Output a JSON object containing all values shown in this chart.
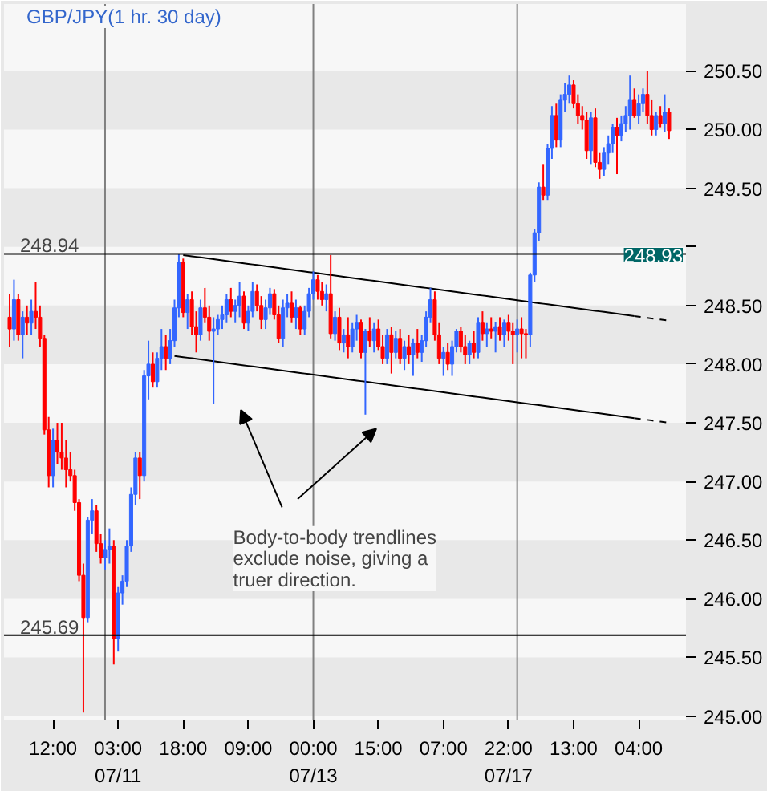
{
  "chart_data": {
    "type": "candlestick",
    "title": "GBP/JPY(1 hr. 30 day)",
    "categories": [
      null,
      null,
      null,
      null,
      null,
      null,
      null,
      null,
      null,
      null,
      "12:00",
      null,
      null,
      null,
      null,
      null,
      null,
      null,
      null,
      null,
      null,
      null,
      null,
      null,
      null,
      "03:00\n07/11",
      null,
      null,
      null,
      null,
      null,
      null,
      null,
      null,
      null,
      null,
      null,
      null,
      null,
      null,
      "18:00",
      null,
      null,
      null,
      null,
      null,
      null,
      null,
      null,
      null,
      null,
      null,
      null,
      null,
      null,
      "09:00",
      null,
      null,
      null,
      null,
      null,
      null,
      null,
      null,
      null,
      null,
      null,
      null,
      null,
      null,
      "00:00\n07/13",
      null,
      null,
      null,
      null,
      null,
      null,
      null,
      null,
      null,
      null,
      null,
      null,
      null,
      null,
      "15:00",
      null,
      null,
      null,
      null,
      null,
      null,
      null,
      null,
      null,
      null,
      null,
      null,
      null,
      null,
      "07:00",
      null,
      null,
      null,
      null,
      null,
      null,
      null,
      null,
      null,
      null,
      null,
      null,
      null,
      null,
      "22:00\n07/17",
      null,
      null,
      null,
      null,
      null,
      null,
      null,
      null,
      null,
      null,
      null,
      null,
      null,
      null,
      "13:00",
      null,
      null,
      null,
      null,
      null,
      null,
      null,
      null,
      null,
      null,
      null,
      null,
      null,
      null,
      "04:00",
      null,
      null,
      null,
      null,
      null,
      null,
      null
    ],
    "ohlc": [
      [
        248.4,
        248.6,
        248.15,
        248.3
      ],
      [
        248.3,
        248.72,
        248.2,
        248.55
      ],
      [
        248.55,
        248.6,
        248.2,
        248.25
      ],
      [
        248.25,
        248.45,
        248.05,
        248.4
      ],
      [
        248.4,
        248.5,
        248.25,
        248.35
      ],
      [
        248.35,
        248.55,
        248.25,
        248.45
      ],
      [
        248.45,
        248.7,
        248.3,
        248.4
      ],
      [
        248.4,
        248.5,
        248.15,
        248.22
      ],
      [
        248.22,
        248.25,
        247.4,
        247.44
      ],
      [
        247.44,
        247.55,
        246.95,
        247.05
      ],
      [
        247.05,
        247.45,
        246.95,
        247.35
      ],
      [
        247.35,
        247.5,
        247.15,
        247.25
      ],
      [
        247.25,
        247.5,
        247.1,
        247.2
      ],
      [
        247.2,
        247.35,
        246.95,
        247.1
      ],
      [
        247.1,
        247.25,
        247.0,
        247.05
      ],
      [
        247.05,
        247.1,
        246.75,
        246.82
      ],
      [
        246.82,
        246.85,
        246.15,
        246.2
      ],
      [
        246.2,
        246.3,
        245.03,
        245.84
      ],
      [
        245.84,
        246.7,
        245.8,
        246.67
      ],
      [
        246.67,
        246.85,
        246.55,
        246.75
      ],
      [
        246.75,
        246.8,
        246.4,
        246.47
      ],
      [
        246.47,
        246.55,
        246.3,
        246.35
      ],
      [
        246.35,
        246.5,
        246.25,
        246.42
      ],
      [
        246.42,
        246.6,
        246.3,
        246.45
      ],
      [
        246.45,
        246.5,
        245.44,
        245.66
      ],
      [
        245.66,
        246.1,
        245.55,
        246.05
      ],
      [
        246.05,
        246.2,
        245.95,
        246.15
      ],
      [
        246.15,
        246.5,
        246.1,
        246.45
      ],
      [
        246.45,
        246.95,
        246.4,
        246.89
      ],
      [
        246.89,
        247.25,
        246.8,
        247.2
      ],
      [
        247.2,
        247.25,
        246.85,
        247.05
      ],
      [
        247.05,
        247.95,
        247.0,
        247.9
      ],
      [
        247.9,
        248.2,
        247.7,
        248.0
      ],
      [
        248.0,
        248.1,
        247.8,
        247.85
      ],
      [
        247.85,
        248.1,
        247.8,
        248.05
      ],
      [
        248.05,
        248.3,
        247.95,
        248.15
      ],
      [
        248.15,
        248.25,
        247.95,
        248.05
      ],
      [
        248.05,
        248.3,
        248.0,
        248.2
      ],
      [
        248.2,
        248.55,
        248.15,
        248.48
      ],
      [
        248.48,
        248.94,
        248.4,
        248.87
      ],
      [
        248.87,
        248.9,
        248.4,
        248.44
      ],
      [
        248.44,
        248.6,
        248.3,
        248.55
      ],
      [
        248.55,
        248.62,
        248.25,
        248.32
      ],
      [
        248.32,
        248.45,
        248.1,
        248.25
      ],
      [
        248.25,
        248.55,
        248.2,
        248.48
      ],
      [
        248.48,
        248.65,
        248.35,
        248.4
      ],
      [
        248.4,
        248.5,
        248.2,
        248.28
      ],
      [
        248.28,
        248.4,
        247.66,
        248.3
      ],
      [
        248.3,
        248.42,
        248.25,
        248.38
      ],
      [
        248.38,
        248.5,
        248.3,
        248.42
      ],
      [
        248.42,
        248.6,
        248.35,
        248.55
      ],
      [
        248.55,
        248.65,
        248.4,
        248.45
      ],
      [
        248.45,
        248.55,
        248.35,
        248.5
      ],
      [
        248.5,
        248.7,
        248.4,
        248.58
      ],
      [
        248.58,
        248.62,
        248.3,
        248.35
      ],
      [
        248.35,
        248.5,
        248.28,
        248.45
      ],
      [
        248.45,
        248.7,
        248.4,
        248.62
      ],
      [
        248.62,
        248.68,
        248.45,
        248.5
      ],
      [
        248.5,
        248.58,
        248.3,
        248.38
      ],
      [
        248.38,
        248.55,
        248.3,
        248.48
      ],
      [
        248.48,
        248.65,
        248.42,
        248.6
      ],
      [
        248.6,
        248.64,
        248.38,
        248.42
      ],
      [
        248.42,
        248.5,
        248.18,
        248.22
      ],
      [
        248.22,
        248.55,
        248.15,
        248.48
      ],
      [
        248.48,
        248.6,
        248.4,
        248.52
      ],
      [
        248.52,
        248.62,
        248.35,
        248.4
      ],
      [
        248.4,
        248.55,
        248.3,
        248.48
      ],
      [
        248.48,
        248.5,
        248.25,
        248.3
      ],
      [
        248.3,
        248.5,
        248.25,
        248.45
      ],
      [
        248.45,
        248.65,
        248.4,
        248.6
      ],
      [
        248.6,
        248.79,
        248.55,
        248.72
      ],
      [
        248.72,
        248.76,
        248.55,
        248.62
      ],
      [
        248.62,
        248.7,
        248.5,
        248.55
      ],
      [
        248.55,
        248.68,
        248.45,
        248.6
      ],
      [
        248.6,
        248.93,
        248.22,
        248.26
      ],
      [
        248.26,
        248.45,
        248.2,
        248.4
      ],
      [
        248.4,
        248.48,
        248.12,
        248.18
      ],
      [
        248.18,
        248.3,
        248.1,
        248.25
      ],
      [
        248.25,
        248.4,
        248.05,
        248.15
      ],
      [
        248.15,
        248.35,
        248.1,
        248.3
      ],
      [
        248.3,
        248.42,
        248.2,
        248.35
      ],
      [
        248.35,
        248.38,
        248.05,
        248.1
      ],
      [
        248.1,
        248.3,
        247.57,
        248.28
      ],
      [
        248.28,
        248.4,
        248.15,
        248.2
      ],
      [
        248.2,
        248.35,
        248.1,
        248.3
      ],
      [
        248.3,
        248.38,
        248.12,
        248.15
      ],
      [
        248.15,
        248.25,
        248.0,
        248.05
      ],
      [
        248.05,
        248.3,
        248.0,
        248.25
      ],
      [
        248.25,
        248.32,
        247.92,
        248.1
      ],
      [
        248.1,
        248.28,
        248.05,
        248.22
      ],
      [
        248.22,
        248.3,
        248.0,
        248.05
      ],
      [
        248.05,
        248.2,
        247.95,
        248.15
      ],
      [
        248.15,
        248.25,
        248.0,
        248.08
      ],
      [
        248.08,
        248.22,
        247.9,
        248.18
      ],
      [
        248.18,
        248.3,
        248.05,
        248.1
      ],
      [
        248.1,
        248.25,
        248.02,
        248.2
      ],
      [
        248.2,
        248.45,
        248.15,
        248.4
      ],
      [
        248.4,
        248.65,
        248.35,
        248.55
      ],
      [
        248.55,
        248.62,
        248.2,
        248.25
      ],
      [
        248.25,
        248.35,
        248.0,
        248.05
      ],
      [
        248.05,
        248.15,
        247.9,
        248.1
      ],
      [
        248.1,
        248.18,
        247.95,
        248.0
      ],
      [
        248.0,
        248.2,
        247.9,
        248.15
      ],
      [
        248.15,
        248.3,
        248.1,
        248.28
      ],
      [
        248.28,
        248.32,
        248.1,
        248.15
      ],
      [
        248.15,
        248.25,
        248.0,
        248.08
      ],
      [
        248.08,
        248.2,
        248.0,
        248.18
      ],
      [
        248.18,
        248.28,
        248.05,
        248.1
      ],
      [
        248.1,
        248.4,
        248.05,
        248.35
      ],
      [
        248.35,
        248.45,
        248.2,
        248.26
      ],
      [
        248.26,
        248.35,
        248.15,
        248.3
      ],
      [
        248.3,
        248.4,
        248.22,
        248.28
      ],
      [
        248.28,
        248.36,
        248.1,
        248.32
      ],
      [
        248.32,
        248.4,
        248.2,
        248.25
      ],
      [
        248.25,
        248.38,
        248.15,
        248.35
      ],
      [
        248.35,
        248.42,
        248.2,
        248.28
      ],
      [
        248.28,
        248.35,
        248.0,
        248.25
      ],
      [
        248.25,
        248.38,
        248.1,
        248.3
      ],
      [
        248.3,
        248.4,
        248.05,
        248.26
      ],
      [
        248.26,
        248.3,
        248.05,
        248.25
      ],
      [
        248.25,
        248.78,
        248.15,
        248.76
      ],
      [
        248.76,
        249.15,
        248.7,
        249.12
      ],
      [
        249.12,
        249.55,
        249.05,
        249.51
      ],
      [
        249.51,
        249.7,
        249.4,
        249.44
      ],
      [
        249.44,
        249.88,
        249.4,
        249.84
      ],
      [
        249.84,
        250.2,
        249.75,
        250.12
      ],
      [
        250.12,
        250.22,
        249.85,
        249.91
      ],
      [
        249.91,
        250.3,
        249.85,
        250.25
      ],
      [
        250.25,
        250.4,
        250.15,
        250.3
      ],
      [
        250.3,
        250.46,
        250.22,
        250.38
      ],
      [
        250.38,
        250.42,
        250.18,
        250.22
      ],
      [
        250.22,
        250.3,
        250.05,
        250.12
      ],
      [
        250.12,
        250.2,
        250.0,
        250.08
      ],
      [
        250.08,
        250.15,
        249.75,
        249.82
      ],
      [
        249.82,
        250.15,
        249.7,
        250.1
      ],
      [
        250.1,
        250.18,
        249.68,
        249.72
      ],
      [
        249.72,
        249.8,
        249.58,
        249.66
      ],
      [
        249.66,
        249.85,
        249.6,
        249.8
      ],
      [
        249.8,
        249.95,
        249.7,
        249.88
      ],
      [
        249.88,
        250.05,
        249.8,
        250.02
      ],
      [
        250.02,
        250.1,
        249.62,
        249.95
      ],
      [
        249.95,
        250.12,
        249.9,
        250.05
      ],
      [
        250.05,
        250.2,
        249.98,
        250.12
      ],
      [
        250.12,
        250.46,
        250.0,
        250.25
      ],
      [
        250.25,
        250.35,
        250.1,
        250.12
      ],
      [
        250.12,
        250.3,
        250.05,
        250.22
      ],
      [
        250.22,
        250.35,
        250.15,
        250.3
      ],
      [
        250.3,
        250.5,
        250.05,
        250.12
      ],
      [
        250.12,
        250.25,
        249.95,
        250.0
      ],
      [
        250.0,
        250.15,
        249.95,
        250.12
      ],
      [
        250.12,
        250.2,
        250.02,
        250.05
      ],
      [
        250.05,
        250.3,
        249.98,
        250.15
      ],
      [
        250.15,
        250.18,
        249.92,
        249.99
      ]
    ],
    "colors": [
      "#ff0000",
      "#3366ff",
      "#ff0000",
      "#3366ff",
      "#ff0000",
      "#3366ff",
      "#ff0000",
      "#ff0000",
      "#ff0000",
      "#ff0000",
      "#3366ff",
      "#ff0000",
      "#ff0000",
      "#ff0000",
      "#ff0000",
      "#ff0000",
      "#ff0000",
      "#ff0000",
      "#3366ff",
      "#3366ff",
      "#ff0000",
      "#ff0000",
      "#3366ff",
      "#3366ff",
      "#ff0000",
      "#3366ff",
      "#3366ff",
      "#3366ff",
      "#3366ff",
      "#3366ff",
      "#ff0000",
      "#3366ff",
      "#3366ff",
      "#ff0000",
      "#3366ff",
      "#3366ff",
      "#ff0000",
      "#3366ff",
      "#3366ff",
      "#3366ff",
      "#ff0000",
      "#3366ff",
      "#ff0000",
      "#ff0000",
      "#3366ff",
      "#ff0000",
      "#ff0000",
      "#3366ff",
      "#3366ff",
      "#3366ff",
      "#3366ff",
      "#ff0000",
      "#3366ff",
      "#3366ff",
      "#ff0000",
      "#3366ff",
      "#3366ff",
      "#ff0000",
      "#ff0000",
      "#3366ff",
      "#3366ff",
      "#ff0000",
      "#ff0000",
      "#3366ff",
      "#3366ff",
      "#ff0000",
      "#3366ff",
      "#ff0000",
      "#3366ff",
      "#3366ff",
      "#3366ff",
      "#ff0000",
      "#ff0000",
      "#3366ff",
      "#ff0000",
      "#3366ff",
      "#ff0000",
      "#3366ff",
      "#ff0000",
      "#3366ff",
      "#3366ff",
      "#ff0000",
      "#3366ff",
      "#ff0000",
      "#3366ff",
      "#ff0000",
      "#ff0000",
      "#3366ff",
      "#ff0000",
      "#3366ff",
      "#ff0000",
      "#3366ff",
      "#ff0000",
      "#3366ff",
      "#ff0000",
      "#3366ff",
      "#3366ff",
      "#3366ff",
      "#ff0000",
      "#ff0000",
      "#3366ff",
      "#ff0000",
      "#3366ff",
      "#3366ff",
      "#ff0000",
      "#ff0000",
      "#3366ff",
      "#ff0000",
      "#3366ff",
      "#ff0000",
      "#3366ff",
      "#ff0000",
      "#3366ff",
      "#ff0000",
      "#3366ff",
      "#ff0000",
      "#ff0000",
      "#3366ff",
      "#ff0000",
      "#ff0000",
      "#3366ff",
      "#3366ff",
      "#3366ff",
      "#ff0000",
      "#3366ff",
      "#3366ff",
      "#ff0000",
      "#3366ff",
      "#3366ff",
      "#3366ff",
      "#ff0000",
      "#ff0000",
      "#ff0000",
      "#ff0000",
      "#3366ff",
      "#ff0000",
      "#ff0000",
      "#3366ff",
      "#3366ff",
      "#3366ff",
      "#ff0000",
      "#3366ff",
      "#3366ff",
      "#3366ff",
      "#ff0000",
      "#3366ff",
      "#3366ff",
      "#ff0000",
      "#ff0000",
      "#3366ff",
      "#ff0000",
      "#3366ff",
      "#ff0000"
    ],
    "series": [
      {
        "type": "line",
        "color": "#000000",
        "line_style": "solid",
        "values": [
          null,
          null,
          null,
          null,
          null,
          null,
          null,
          null,
          null,
          null,
          null,
          null,
          null,
          null,
          null,
          null,
          null,
          null,
          null,
          null,
          null,
          null,
          null,
          null,
          null,
          null,
          null,
          null,
          null,
          null,
          null,
          null,
          null,
          null,
          null,
          null,
          null,
          null,
          null,
          null,
          248.93,
          248.925,
          248.92,
          248.915,
          248.91,
          248.905,
          248.9,
          248.895,
          248.89,
          248.885,
          248.88,
          248.875,
          248.87,
          248.865,
          248.86,
          248.855,
          248.85,
          248.845,
          248.84,
          248.835,
          248.83,
          248.825,
          248.82,
          248.815,
          248.81,
          248.805,
          248.8,
          248.795,
          248.79,
          248.785,
          248.78,
          248.775,
          248.77,
          248.765,
          248.76,
          248.755,
          248.75,
          248.745,
          248.74,
          248.735,
          248.73,
          248.725,
          248.72,
          248.715,
          248.71,
          248.705,
          248.7,
          248.695,
          248.69,
          248.685,
          248.68,
          248.675,
          248.67,
          248.665,
          248.66,
          248.655,
          248.65,
          248.645,
          248.64,
          248.635,
          248.63,
          248.625,
          248.62,
          248.615,
          248.61,
          248.605,
          248.6,
          248.595,
          248.59,
          248.585,
          248.58,
          248.575,
          248.57,
          248.565,
          248.56,
          248.555,
          248.55,
          248.545,
          248.54,
          248.535,
          248.53,
          248.525,
          248.52,
          248.515,
          248.51,
          248.505,
          248.5,
          248.495,
          248.49,
          248.485,
          248.48,
          248.475,
          248.47,
          248.465,
          248.46,
          248.455,
          248.45,
          248.445,
          248.44,
          248.435,
          248.43,
          248.425,
          248.42,
          248.415,
          248.41,
          null,
          null,
          null,
          null,
          null,
          null,
          null,
          null
        ]
      },
      {
        "type": "line",
        "color": "#000000",
        "line_style": "dashed",
        "values": [
          null,
          null,
          null,
          null,
          null,
          null,
          null,
          null,
          null,
          null,
          null,
          null,
          null,
          null,
          null,
          null,
          null,
          null,
          null,
          null,
          null,
          null,
          null,
          null,
          null,
          null,
          null,
          null,
          null,
          null,
          null,
          null,
          null,
          null,
          null,
          null,
          null,
          null,
          null,
          null,
          null,
          null,
          null,
          null,
          null,
          null,
          null,
          null,
          null,
          null,
          null,
          null,
          null,
          null,
          null,
          null,
          null,
          null,
          null,
          null,
          null,
          null,
          null,
          null,
          null,
          null,
          null,
          null,
          null,
          null,
          null,
          null,
          null,
          null,
          null,
          null,
          null,
          null,
          null,
          null,
          null,
          null,
          null,
          null,
          null,
          null,
          null,
          null,
          null,
          null,
          null,
          null,
          null,
          null,
          null,
          null,
          null,
          null,
          null,
          null,
          null,
          null,
          null,
          null,
          null,
          null,
          null,
          null,
          null,
          null,
          null,
          null,
          null,
          null,
          null,
          null,
          null,
          null,
          null,
          null,
          null,
          null,
          null,
          null,
          null,
          null,
          null,
          null,
          null,
          null,
          null,
          null,
          null,
          null,
          null,
          null,
          null,
          null,
          null,
          null,
          null,
          null,
          null,
          null,
          248.41,
          248.405,
          248.4,
          248.395,
          248.39,
          248.385,
          248.38,
          248.375,
          248.37
        ]
      },
      {
        "type": "line",
        "color": "#000000",
        "line_style": "solid",
        "values": [
          null,
          null,
          null,
          null,
          null,
          null,
          null,
          null,
          null,
          null,
          null,
          null,
          null,
          null,
          null,
          null,
          null,
          null,
          null,
          null,
          null,
          null,
          null,
          null,
          null,
          null,
          null,
          null,
          null,
          null,
          null,
          null,
          null,
          null,
          null,
          null,
          null,
          null,
          248.07,
          248.065,
          248.06,
          248.055,
          248.05,
          248.045,
          248.04,
          248.035,
          248.03,
          248.025,
          248.02,
          248.015,
          248.01,
          248.005,
          248,
          247.995,
          247.99,
          247.985,
          247.98,
          247.975,
          247.97,
          247.965,
          247.96,
          247.955,
          247.95,
          247.945,
          247.94,
          247.935,
          247.93,
          247.925,
          247.92,
          247.915,
          247.91,
          247.905,
          247.9,
          247.895,
          247.89,
          247.885,
          247.88,
          247.875,
          247.87,
          247.865,
          247.86,
          247.855,
          247.85,
          247.845,
          247.84,
          247.835,
          247.83,
          247.825,
          247.82,
          247.815,
          247.81,
          247.805,
          247.8,
          247.795,
          247.79,
          247.785,
          247.78,
          247.775,
          247.77,
          247.765,
          247.76,
          247.755,
          247.75,
          247.745,
          247.74,
          247.735,
          247.73,
          247.725,
          247.72,
          247.715,
          247.71,
          247.705,
          247.7,
          247.695,
          247.69,
          247.685,
          247.68,
          247.675,
          247.67,
          247.665,
          247.66,
          247.655,
          247.65,
          247.645,
          247.64,
          247.635,
          247.63,
          247.625,
          247.62,
          247.615,
          247.61,
          247.605,
          247.6,
          247.595,
          247.59,
          247.585,
          247.58,
          247.575,
          247.57,
          247.565,
          247.56,
          247.555,
          247.55,
          247.545,
          247.54,
          null,
          null,
          null,
          null,
          null,
          null,
          null,
          null
        ]
      },
      {
        "type": "line",
        "color": "#000000",
        "line_style": "dashed",
        "values": [
          null,
          null,
          null,
          null,
          null,
          null,
          null,
          null,
          null,
          null,
          null,
          null,
          null,
          null,
          null,
          null,
          null,
          null,
          null,
          null,
          null,
          null,
          null,
          null,
          null,
          null,
          null,
          null,
          null,
          null,
          null,
          null,
          null,
          null,
          null,
          null,
          null,
          null,
          null,
          null,
          null,
          null,
          null,
          null,
          null,
          null,
          null,
          null,
          null,
          null,
          null,
          null,
          null,
          null,
          null,
          null,
          null,
          null,
          null,
          null,
          null,
          null,
          null,
          null,
          null,
          null,
          null,
          null,
          null,
          null,
          null,
          null,
          null,
          null,
          null,
          null,
          null,
          null,
          null,
          null,
          null,
          null,
          null,
          null,
          null,
          null,
          null,
          null,
          null,
          null,
          null,
          null,
          null,
          null,
          null,
          null,
          null,
          null,
          null,
          null,
          null,
          null,
          null,
          null,
          null,
          null,
          null,
          null,
          null,
          null,
          null,
          null,
          null,
          null,
          null,
          null,
          null,
          null,
          null,
          null,
          null,
          null,
          null,
          null,
          null,
          null,
          null,
          null,
          null,
          null,
          null,
          null,
          null,
          null,
          null,
          null,
          null,
          null,
          null,
          null,
          null,
          null,
          null,
          null,
          247.54,
          247.535,
          247.53,
          247.525,
          247.52,
          247.515,
          247.51,
          247.505,
          247.5
        ]
      }
    ],
    "ylim": [
      244.97,
      251.07
    ],
    "yticks": [
      {
        "value": 245,
        "label": "245.00"
      },
      {
        "value": 245.5,
        "label": "245.50"
      },
      {
        "value": 246,
        "label": "246.00"
      },
      {
        "value": 246.5,
        "label": "246.50"
      },
      {
        "value": 247,
        "label": "247.00"
      },
      {
        "value": 247.5,
        "label": "247.50"
      },
      {
        "value": 248,
        "label": "248.00"
      },
      {
        "value": 248.5,
        "label": "248.50"
      },
      {
        "value": 249,
        "label": null
      },
      {
        "value": 249.5,
        "label": "249.50"
      },
      {
        "value": 250,
        "label": "250.00"
      },
      {
        "value": 250.5,
        "label": "250.50"
      }
    ],
    "ref_lines": [
      {
        "axis": "y",
        "value": 248.94,
        "label": "248.94",
        "color": "#000000"
      },
      {
        "axis": "y",
        "value": 245.69,
        "label": "245.69",
        "color": "#000000"
      }
    ],
    "annotations": [
      "Body-to-body trendlines\nexclude noise, giving a\ntruer direction.",
      {
        "text": "248.93",
        "y": 248.93
      }
    ]
  }
}
